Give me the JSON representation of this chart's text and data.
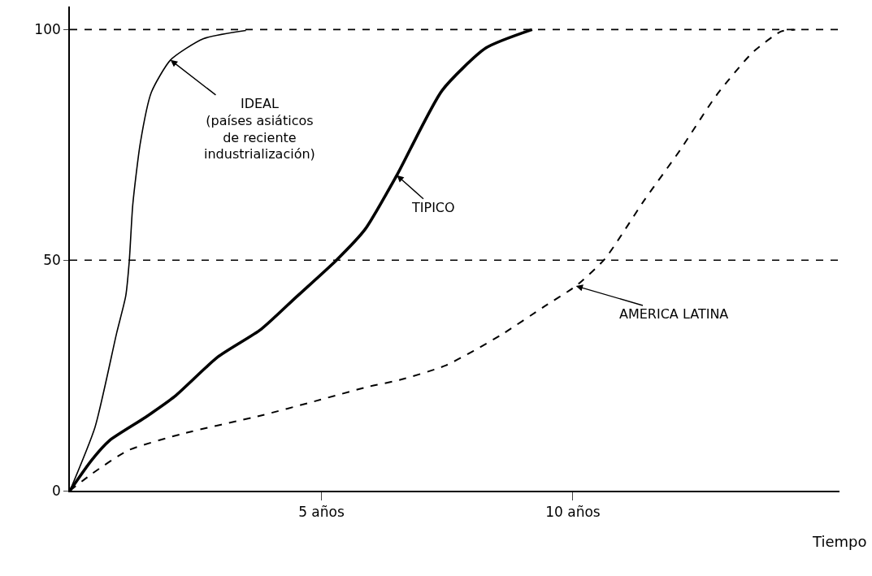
{
  "chart_data": {
    "type": "line",
    "xlabel": "Tiempo",
    "xlim": [
      0,
      15.3
    ],
    "ylim": [
      0,
      105
    ],
    "xticks": [
      {
        "value": 5,
        "label": "5 años"
      },
      {
        "value": 10,
        "label": "10 años"
      }
    ],
    "yticks": [
      0,
      50,
      100
    ],
    "marker": "none",
    "series": [
      {
        "color": "#000000",
        "line_style": "solid",
        "x": [
          0,
          0.5,
          0.93,
          1.11,
          1.18,
          1.25,
          1.4,
          1.62,
          2.0,
          2.65,
          3.5
        ],
        "values": [
          0,
          13.8,
          34.2,
          42.2,
          49.7,
          62,
          75.4,
          86.4,
          93.4,
          98,
          99.8
        ]
      },
      {
        "color": "#000000",
        "line_style": "solid",
        "x": [
          0,
          0.43,
          0.79,
          1.5,
          2.08,
          2.94,
          3.8,
          4.5,
          5.3,
          5.87,
          6.5,
          7.4,
          8.27,
          9.19
        ],
        "values": [
          0,
          6.6,
          10.9,
          15.9,
          20.4,
          29,
          35,
          42,
          50,
          56.7,
          68.4,
          86.8,
          96,
          100
        ]
      },
      {
        "color": "#000000",
        "line_style": "dashed",
        "x": [
          0,
          0.43,
          1.15,
          2.22,
          3.8,
          4.87,
          5.95,
          6.55,
          7.48,
          8.56,
          9.41,
          10.06,
          10.63,
          11.42,
          12.14,
          12.85,
          13.57,
          14.14,
          14.42
        ],
        "values": [
          0,
          3.6,
          8.7,
          12.3,
          16.3,
          19.4,
          22.6,
          24,
          27.2,
          33.7,
          39.8,
          44.4,
          50.2,
          63,
          74,
          85.7,
          95,
          99.6,
          100
        ]
      }
    ],
    "ref_lines": [
      {
        "axis": "y",
        "value": 50,
        "color": "#000000",
        "line_style": "dashed"
      },
      {
        "axis": "y",
        "value": 100,
        "color": "#000000",
        "line_style": "dashed"
      }
    ],
    "annotations": [
      {
        "text": "IDEAL\n(países asiáticos\nde reciente\nindustrialización)",
        "x": 2.0,
        "y": 93.4
      },
      {
        "text": "TIPICO",
        "x": 6.5,
        "y": 68.4
      },
      {
        "text": "AMERICA LATINA",
        "x": 10.06,
        "y": 44.4
      }
    ]
  }
}
